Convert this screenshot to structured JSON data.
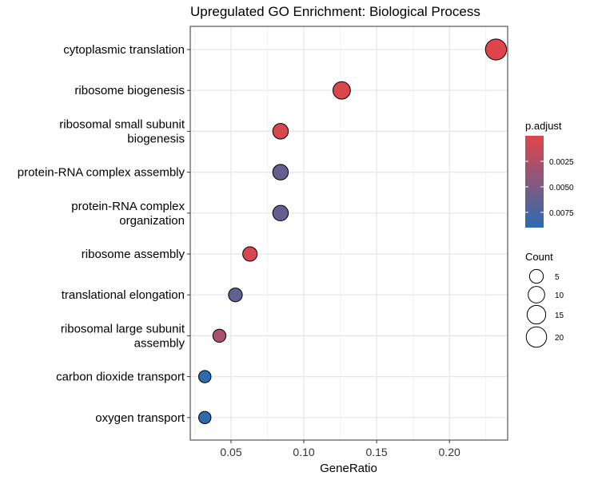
{
  "chart_data": {
    "type": "scatter",
    "title": "Upregulated GO Enrichment: Biological Process",
    "xlabel": "GeneRatio",
    "ylabel": "",
    "xlim": [
      0.022,
      0.24
    ],
    "x_ticks": [
      0.05,
      0.1,
      0.15,
      0.2
    ],
    "x_tick_labels": [
      "0.05",
      "0.10",
      "0.15",
      "0.20"
    ],
    "grid": true,
    "categories": [
      [
        "cytoplasmic translation"
      ],
      [
        "ribosome biogenesis"
      ],
      [
        "ribosomal small subunit",
        "biogenesis"
      ],
      [
        "protein-RNA complex assembly"
      ],
      [
        "protein-RNA complex",
        "organization"
      ],
      [
        "ribosome assembly"
      ],
      [
        "translational elongation"
      ],
      [
        "ribosomal large subunit",
        "assembly"
      ],
      [
        "carbon dioxide transport"
      ],
      [
        "oxygen transport"
      ]
    ],
    "points": [
      {
        "x": 0.232,
        "count": 22,
        "p_adjust": 0.0001
      },
      {
        "x": 0.126,
        "count": 12,
        "p_adjust": 0.0003
      },
      {
        "x": 0.084,
        "count": 8,
        "p_adjust": 0.0005
      },
      {
        "x": 0.084,
        "count": 8,
        "p_adjust": 0.0062
      },
      {
        "x": 0.084,
        "count": 8,
        "p_adjust": 0.0062
      },
      {
        "x": 0.063,
        "count": 6,
        "p_adjust": 0.0004
      },
      {
        "x": 0.053,
        "count": 5,
        "p_adjust": 0.0062
      },
      {
        "x": 0.042,
        "count": 4,
        "p_adjust": 0.0028
      },
      {
        "x": 0.032,
        "count": 3,
        "p_adjust": 0.0088
      },
      {
        "x": 0.032,
        "count": 3,
        "p_adjust": 0.0088
      }
    ],
    "color_legend": {
      "title": "p.adjust",
      "min": 0.0,
      "max": 0.009,
      "low_color": "#E0454A",
      "high_color": "#2B6BB0",
      "ticks": [
        0.0025,
        0.005,
        0.0075
      ],
      "tick_labels": [
        "0.0025",
        "0.0050",
        "0.0075"
      ],
      "placement": "right"
    },
    "size_legend": {
      "title": "Count",
      "values": [
        5,
        10,
        15,
        20
      ],
      "labels": [
        "5",
        "10",
        "15",
        "20"
      ],
      "placement": "right"
    }
  }
}
